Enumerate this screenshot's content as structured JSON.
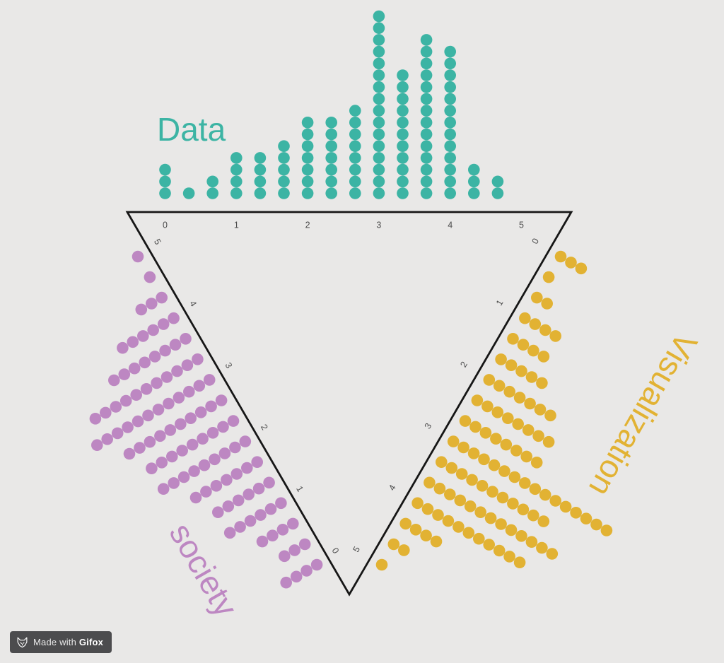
{
  "page": {
    "background": "#e9e8e7",
    "triangle_edge_color": "#161616",
    "tick_color": "#4d4d4d"
  },
  "watermark": {
    "made_with": "Made with ",
    "brand": "Gifox",
    "background": "#4c4c4e",
    "text_color": "#e8e8e8",
    "brand_color": "#ffffff"
  },
  "chart_data": {
    "type": "ternary-dot-histogram",
    "total_points_per_axis": 100,
    "bin_values": [
      0,
      0.33,
      0.67,
      1,
      1.33,
      1.67,
      2,
      2.33,
      2.67,
      3,
      3.33,
      3.67,
      4,
      4.33,
      4.67,
      5
    ],
    "axis_range": [
      0,
      5
    ],
    "axes": [
      {
        "name": "Data",
        "color": "#3cb4a4",
        "tick_labels": [
          "0",
          "1",
          "2",
          "3",
          "4",
          "5"
        ],
        "counts": [
          3,
          1,
          2,
          4,
          4,
          5,
          7,
          7,
          8,
          16,
          11,
          14,
          13,
          3,
          2,
          0
        ]
      },
      {
        "name": "society",
        "color": "#bd87c2",
        "tick_labels": [
          "0",
          "1",
          "2",
          "3",
          "4",
          "5"
        ],
        "counts": [
          4,
          3,
          4,
          6,
          6,
          7,
          9,
          9,
          10,
          12,
          11,
          8,
          6,
          3,
          1,
          1
        ]
      },
      {
        "name": "Visualization",
        "color": "#e2b233",
        "tick_labels": [
          "0",
          "1",
          "2",
          "3",
          "4",
          "5"
        ],
        "counts": [
          3,
          1,
          2,
          4,
          4,
          5,
          7,
          8,
          8,
          16,
          11,
          13,
          11,
          4,
          2,
          1
        ]
      }
    ]
  }
}
